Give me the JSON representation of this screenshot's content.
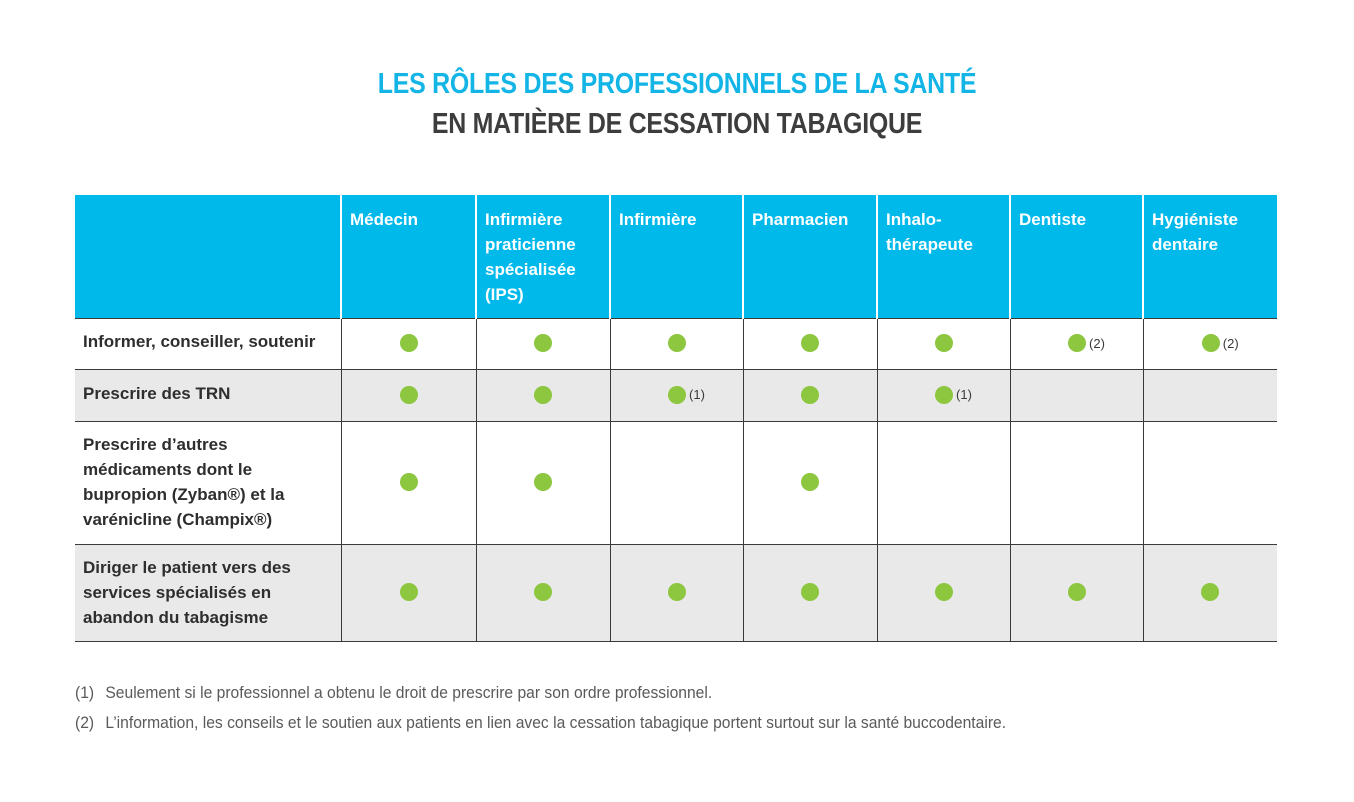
{
  "title": {
    "line1": "LES RÔLES DES PROFESSIONNELS DE LA SANTÉ",
    "line2": "EN MATIÈRE DE CESSATION TABAGIQUE"
  },
  "colors": {
    "header_bg": "#00b9eb",
    "title_accent": "#13b5e6",
    "dot": "#8dc63f",
    "row_shade": "#e9e9e9"
  },
  "table": {
    "columns": [
      "",
      "Médecin",
      "Infirmière praticienne spécialisée (IPS)",
      "Infirmière",
      "Pharmacien",
      "Inhalo-thérapeute",
      "Dentiste",
      "Hygiéniste dentaire"
    ],
    "column_lines": [
      [
        ""
      ],
      [
        "Médecin"
      ],
      [
        "Infirmière",
        "praticienne",
        "spécialisée",
        "(IPS)"
      ],
      [
        "Infirmière"
      ],
      [
        "Pharmacien"
      ],
      [
        "Inhalo-",
        "thérapeute"
      ],
      [
        "Dentiste"
      ],
      [
        "Hygiéniste",
        "dentaire"
      ]
    ],
    "rows": [
      {
        "label": "Informer, conseiller, soutenir",
        "label_lines": [
          "Informer, conseiller, soutenir"
        ],
        "cells": [
          {
            "mark": true,
            "note": ""
          },
          {
            "mark": true,
            "note": ""
          },
          {
            "mark": true,
            "note": ""
          },
          {
            "mark": true,
            "note": ""
          },
          {
            "mark": true,
            "note": ""
          },
          {
            "mark": true,
            "note": "(2)"
          },
          {
            "mark": true,
            "note": "(2)"
          }
        ]
      },
      {
        "label": "Prescrire des TRN",
        "label_lines": [
          "Prescrire des TRN"
        ],
        "cells": [
          {
            "mark": true,
            "note": ""
          },
          {
            "mark": true,
            "note": ""
          },
          {
            "mark": true,
            "note": "(1)"
          },
          {
            "mark": true,
            "note": ""
          },
          {
            "mark": true,
            "note": "(1)"
          },
          {
            "mark": false,
            "note": ""
          },
          {
            "mark": false,
            "note": ""
          }
        ]
      },
      {
        "label": "Prescrire d’autres médicaments dont le bupropion (Zyban®) et la varénicline (Champix®)",
        "label_lines": [
          "Prescrire d’autres",
          "médicaments dont le",
          "bupropion (Zyban®) et la",
          "varénicline (Champix®)"
        ],
        "cells": [
          {
            "mark": true,
            "note": ""
          },
          {
            "mark": true,
            "note": ""
          },
          {
            "mark": false,
            "note": ""
          },
          {
            "mark": true,
            "note": ""
          },
          {
            "mark": false,
            "note": ""
          },
          {
            "mark": false,
            "note": ""
          },
          {
            "mark": false,
            "note": ""
          }
        ]
      },
      {
        "label": "Diriger le patient vers des services spécialisés en abandon du tabagisme",
        "label_lines": [
          "Diriger le patient vers des",
          "services spécialisés en",
          "abandon du tabagisme"
        ],
        "cells": [
          {
            "mark": true,
            "note": ""
          },
          {
            "mark": true,
            "note": ""
          },
          {
            "mark": true,
            "note": ""
          },
          {
            "mark": true,
            "note": ""
          },
          {
            "mark": true,
            "note": ""
          },
          {
            "mark": true,
            "note": ""
          },
          {
            "mark": true,
            "note": ""
          }
        ]
      }
    ]
  },
  "footnotes": [
    {
      "num": "(1)",
      "text": "Seulement si le professionnel a obtenu le droit de prescrire par son ordre professionnel."
    },
    {
      "num": "(2)",
      "text": "L’information, les conseils et le soutien aux patients en lien avec la cessation tabagique portent surtout sur la santé buccodentaire."
    }
  ]
}
